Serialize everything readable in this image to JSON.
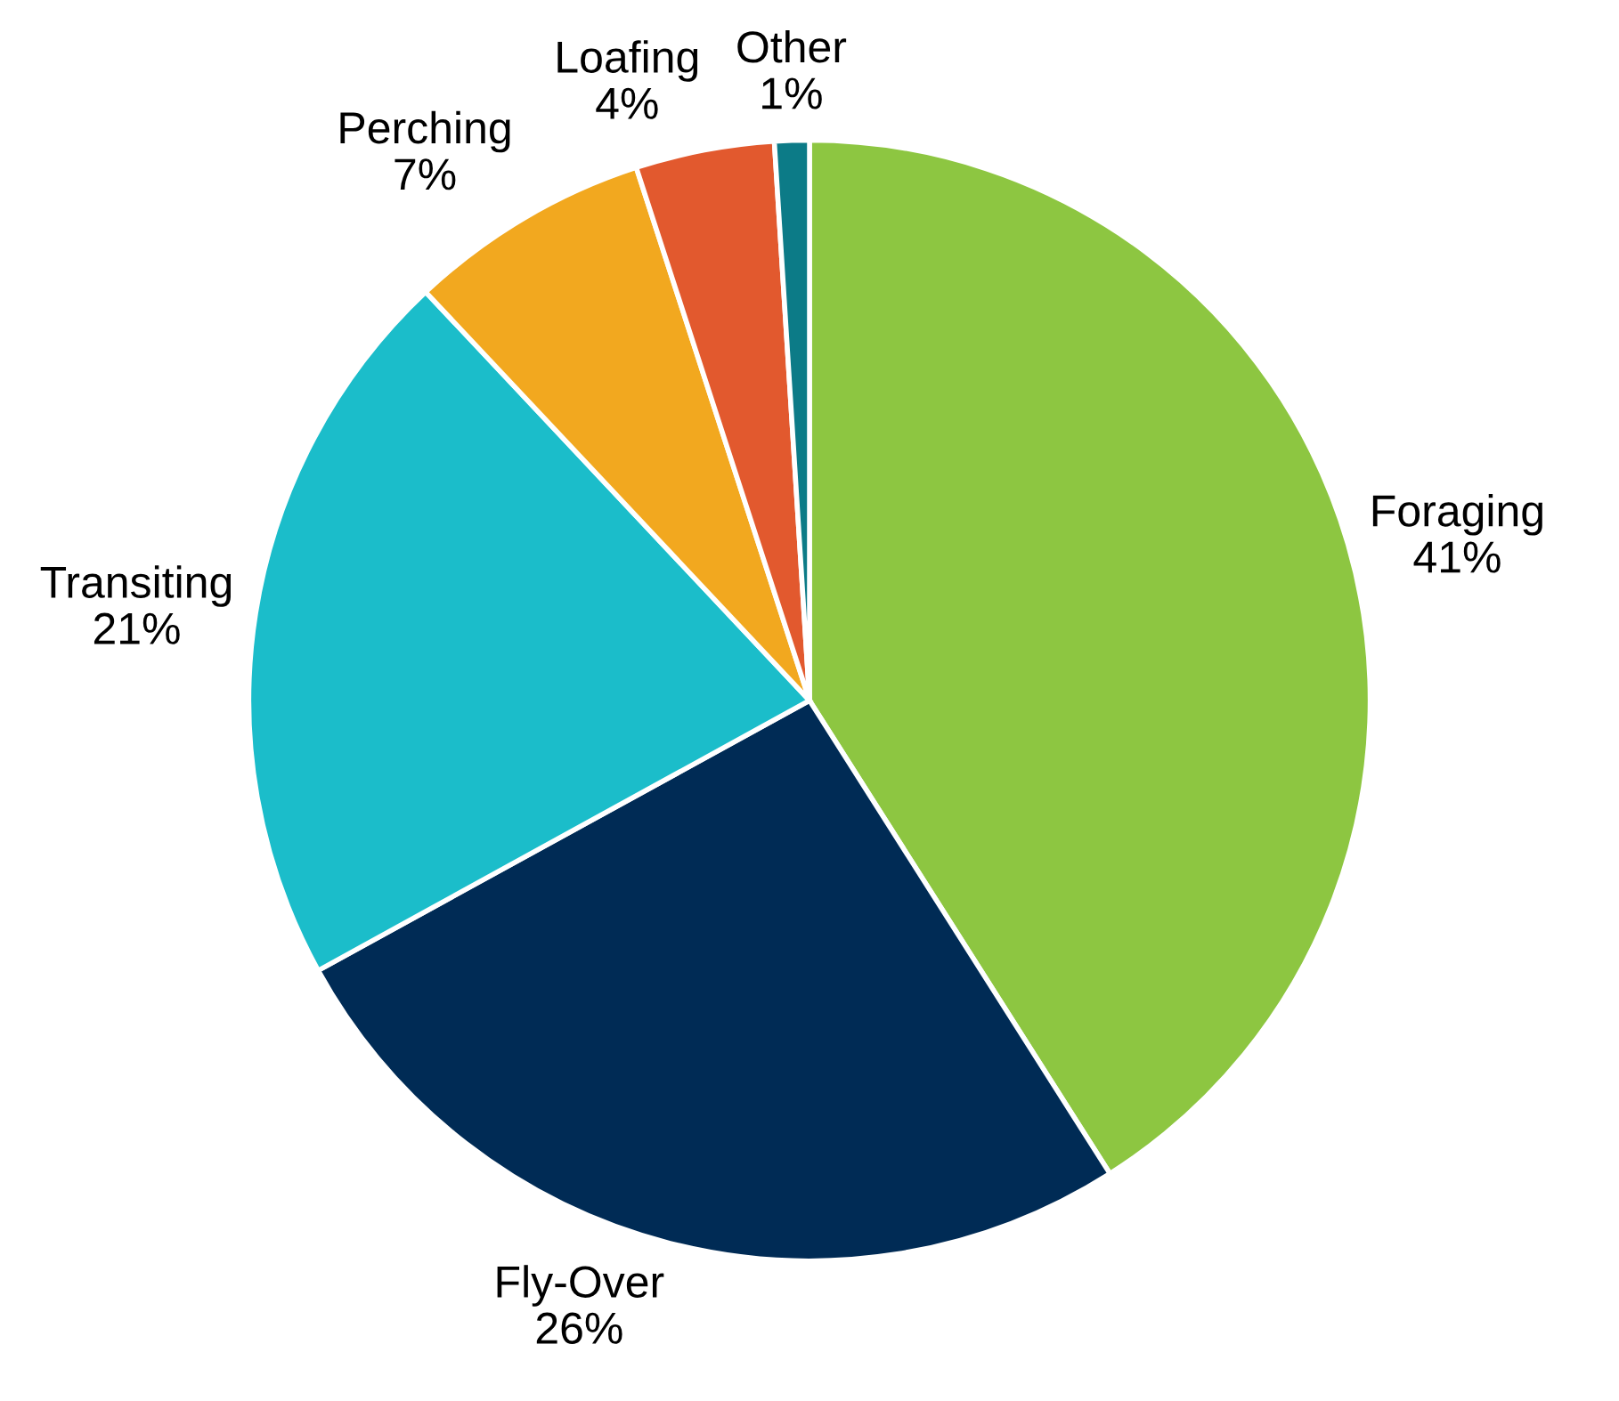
{
  "chart_data": {
    "type": "pie",
    "categories": [
      "Foraging",
      "Fly-Over",
      "Transiting",
      "Perching",
      "Loafing",
      "Other"
    ],
    "values": [
      41,
      26,
      21,
      7,
      4,
      1
    ],
    "colors": [
      "#8dc641",
      "#002b55",
      "#1bbdca",
      "#f2a81f",
      "#e2592e",
      "#0c7b87"
    ],
    "value_labels": [
      "41%",
      "26%",
      "21%",
      "7%",
      "4%",
      "1%"
    ]
  }
}
